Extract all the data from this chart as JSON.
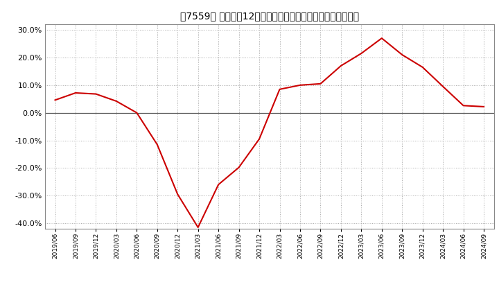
{
  "title": "［7559］ 売上高の12か月移動合計の対前年同期増減率の推移",
  "line_color": "#cc0000",
  "background_color": "#ffffff",
  "plot_bg_color": "#ffffff",
  "grid_color": "#aaaaaa",
  "zero_line_color": "#555555",
  "ylim": [
    -0.42,
    0.32
  ],
  "yticks": [
    -0.4,
    -0.3,
    -0.2,
    -0.1,
    0.0,
    0.1,
    0.2,
    0.3
  ],
  "dates": [
    "2019/06",
    "2019/09",
    "2019/12",
    "2020/03",
    "2020/06",
    "2020/09",
    "2020/12",
    "2021/03",
    "2021/06",
    "2021/09",
    "2021/12",
    "2022/03",
    "2022/06",
    "2022/09",
    "2022/12",
    "2023/03",
    "2023/06",
    "2023/09",
    "2023/12",
    "2024/03",
    "2024/06",
    "2024/09"
  ],
  "values": [
    0.046,
    0.072,
    0.068,
    0.042,
    0.0,
    -0.115,
    -0.295,
    -0.415,
    -0.26,
    -0.198,
    -0.095,
    0.085,
    0.1,
    0.105,
    0.17,
    0.215,
    0.27,
    0.21,
    0.165,
    0.095,
    0.026,
    0.022
  ]
}
